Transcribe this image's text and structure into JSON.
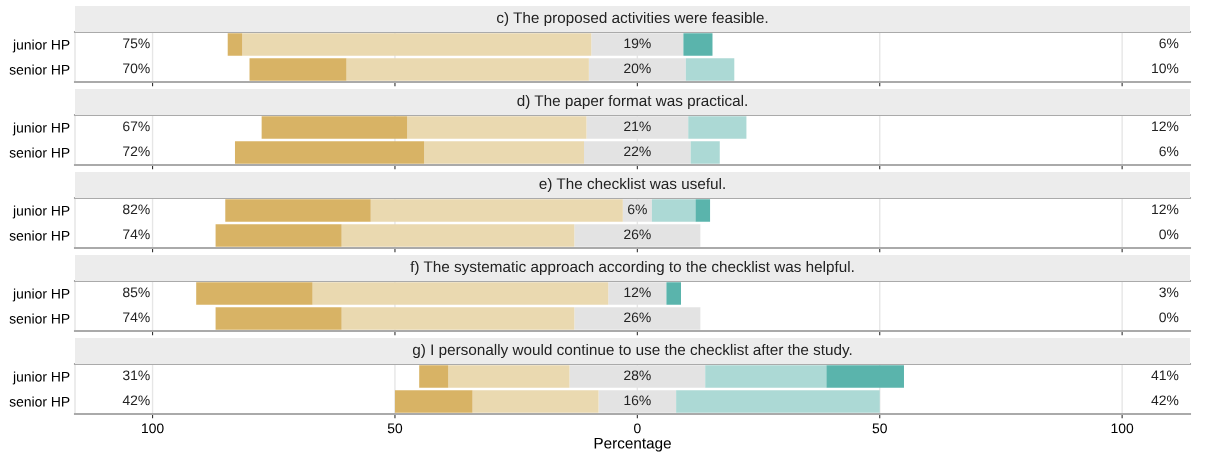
{
  "chart_data": [
    {
      "type": "bar",
      "orientation": "horizontal",
      "stacked": true,
      "title": "c) The proposed activities were feasible.",
      "categories": [
        "junior HP",
        "senior HP"
      ],
      "series": [
        {
          "color": "#e3e3e3",
          "values": [
            -9.5,
            -10
          ]
        },
        {
          "color": "#ead9b0",
          "values": [
            -72,
            -50
          ]
        },
        {
          "color": "#d8b365",
          "values": [
            -3,
            -20
          ]
        },
        {
          "color": "#e3e3e3",
          "values": [
            9.5,
            10
          ]
        },
        {
          "color": "#acd9d5",
          "values": [
            0,
            10
          ]
        },
        {
          "color": "#5ab4ac",
          "values": [
            6,
            0
          ]
        }
      ],
      "annotations": [
        "75%",
        "19%",
        "6%",
        "70%",
        "20%",
        "10%"
      ],
      "xlim": [
        -116,
        114
      ],
      "xticks": [
        {
          "value": -100,
          "label": null
        },
        {
          "value": -50,
          "label": null
        },
        {
          "value": 0,
          "label": null
        },
        {
          "value": 50,
          "label": null
        },
        {
          "value": 100,
          "label": null
        }
      ],
      "grid": "x",
      "tick_labels": "y"
    },
    {
      "type": "bar",
      "orientation": "horizontal",
      "stacked": true,
      "title": "d) The paper format was practical.",
      "categories": [
        "junior HP",
        "senior HP"
      ],
      "series": [
        {
          "color": "#e3e3e3",
          "values": [
            -10.5,
            -11
          ]
        },
        {
          "color": "#ead9b0",
          "values": [
            -37,
            -33
          ]
        },
        {
          "color": "#d8b365",
          "values": [
            -30,
            -39
          ]
        },
        {
          "color": "#e3e3e3",
          "values": [
            10.5,
            11
          ]
        },
        {
          "color": "#acd9d5",
          "values": [
            12,
            6
          ]
        },
        {
          "color": "#5ab4ac",
          "values": [
            0,
            0
          ]
        }
      ],
      "annotations": [
        "67%",
        "21%",
        "12%",
        "72%",
        "22%",
        "6%"
      ],
      "xlim": [
        -116,
        114
      ],
      "xticks": [
        {
          "value": -100,
          "label": null
        },
        {
          "value": -50,
          "label": null
        },
        {
          "value": 0,
          "label": null
        },
        {
          "value": 50,
          "label": null
        },
        {
          "value": 100,
          "label": null
        }
      ],
      "grid": "x",
      "tick_labels": "y"
    },
    {
      "type": "bar",
      "orientation": "horizontal",
      "stacked": true,
      "title": "e) The checklist was useful.",
      "categories": [
        "junior HP",
        "senior HP"
      ],
      "series": [
        {
          "color": "#e3e3e3",
          "values": [
            -3,
            -13
          ]
        },
        {
          "color": "#ead9b0",
          "values": [
            -52,
            -48
          ]
        },
        {
          "color": "#d8b365",
          "values": [
            -30,
            -26
          ]
        },
        {
          "color": "#e3e3e3",
          "values": [
            3,
            13
          ]
        },
        {
          "color": "#acd9d5",
          "values": [
            9,
            0
          ]
        },
        {
          "color": "#5ab4ac",
          "values": [
            3,
            0
          ]
        }
      ],
      "annotations": [
        "82%",
        "6%",
        "12%",
        "74%",
        "26%",
        "0%"
      ],
      "xlim": [
        -116,
        114
      ],
      "xticks": [
        {
          "value": -100,
          "label": null
        },
        {
          "value": -50,
          "label": null
        },
        {
          "value": 0,
          "label": null
        },
        {
          "value": 50,
          "label": null
        },
        {
          "value": 100,
          "label": null
        }
      ],
      "grid": "x",
      "tick_labels": "y"
    },
    {
      "type": "bar",
      "orientation": "horizontal",
      "stacked": true,
      "title": "f) The systematic approach according to the checklist was helpful.",
      "categories": [
        "junior HP",
        "senior HP"
      ],
      "series": [
        {
          "color": "#e3e3e3",
          "values": [
            -6,
            -13
          ]
        },
        {
          "color": "#ead9b0",
          "values": [
            -61,
            -48
          ]
        },
        {
          "color": "#d8b365",
          "values": [
            -24,
            -26
          ]
        },
        {
          "color": "#e3e3e3",
          "values": [
            6,
            13
          ]
        },
        {
          "color": "#acd9d5",
          "values": [
            0,
            0
          ]
        },
        {
          "color": "#5ab4ac",
          "values": [
            3,
            0
          ]
        }
      ],
      "annotations": [
        "85%",
        "12%",
        "3%",
        "74%",
        "26%",
        "0%"
      ],
      "xlim": [
        -116,
        114
      ],
      "xticks": [
        {
          "value": -100,
          "label": null
        },
        {
          "value": -50,
          "label": null
        },
        {
          "value": 0,
          "label": null
        },
        {
          "value": 50,
          "label": null
        },
        {
          "value": 100,
          "label": null
        }
      ],
      "grid": "x",
      "tick_labels": "y"
    },
    {
      "type": "bar",
      "orientation": "horizontal",
      "stacked": true,
      "title": "g) I personally would continue to use the checklist after the study.",
      "xlabel": "Percentage",
      "categories": [
        "junior HP",
        "senior HP"
      ],
      "series": [
        {
          "color": "#e3e3e3",
          "values": [
            -14,
            -8
          ]
        },
        {
          "color": "#ead9b0",
          "values": [
            -25,
            -26
          ]
        },
        {
          "color": "#d8b365",
          "values": [
            -6,
            -16
          ]
        },
        {
          "color": "#e3e3e3",
          "values": [
            14,
            8
          ]
        },
        {
          "color": "#acd9d5",
          "values": [
            25,
            42
          ]
        },
        {
          "color": "#5ab4ac",
          "values": [
            16,
            0
          ]
        }
      ],
      "annotations": [
        "31%",
        "28%",
        "41%",
        "42%",
        "16%",
        "42%"
      ],
      "xlim": [
        -116,
        114
      ],
      "xticks": [
        {
          "value": -100,
          "label": "100"
        },
        {
          "value": -50,
          "label": "50"
        },
        0,
        50,
        100
      ],
      "grid": "x"
    }
  ]
}
